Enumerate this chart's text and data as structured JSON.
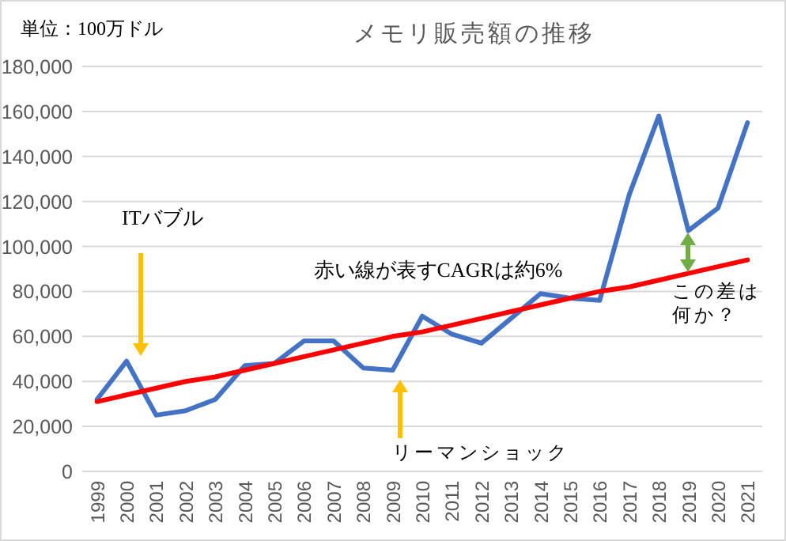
{
  "chart_data": {
    "type": "line",
    "title": "メモリ販売額の推移",
    "categories": [
      "1999",
      "2000",
      "2001",
      "2002",
      "2003",
      "2004",
      "2005",
      "2006",
      "2007",
      "2008",
      "2009",
      "2010",
      "2011",
      "2012",
      "2013",
      "2014",
      "2015",
      "2016",
      "2017",
      "2018",
      "2019",
      "2020",
      "2021"
    ],
    "series": [
      {
        "color": "#4472c4",
        "values": [
          32000,
          49000,
          25000,
          27000,
          32000,
          47000,
          48000,
          58000,
          58000,
          46000,
          45000,
          69000,
          61000,
          57000,
          68000,
          79000,
          77000,
          76000,
          123000,
          158000,
          107000,
          117000,
          155000
        ]
      },
      {
        "type": "line",
        "color": "#ff0000",
        "values": [
          31000,
          34000,
          37000,
          40000,
          42000,
          45000,
          48000,
          51000,
          54000,
          57000,
          60000,
          62000,
          65000,
          68000,
          71000,
          74000,
          77000,
          80000,
          82000,
          85000,
          88000,
          91000,
          94000
        ]
      }
    ],
    "ylim": [
      0,
      180000
    ],
    "yticks": [
      {
        "value": 0,
        "label": "0"
      },
      {
        "value": 20000,
        "label": "20,000"
      },
      {
        "value": 40000,
        "label": "40,000"
      },
      {
        "value": 60000,
        "label": "60,000"
      },
      {
        "value": 80000,
        "label": "80,000"
      },
      {
        "value": 100000,
        "label": "100,000"
      },
      {
        "value": 120000,
        "label": "120,000"
      },
      {
        "value": 140000,
        "label": "140,000"
      },
      {
        "value": 160000,
        "label": "160,000"
      },
      {
        "value": 180000,
        "label": "180,000"
      }
    ],
    "grid": "y",
    "marker": "none",
    "line_style": "solid",
    "annotations": [
      "単位：100万ドル",
      "赤い線が表すCAGRは約6%",
      "ITバブル",
      "リーマンショック",
      "この差は何か？"
    ]
  }
}
